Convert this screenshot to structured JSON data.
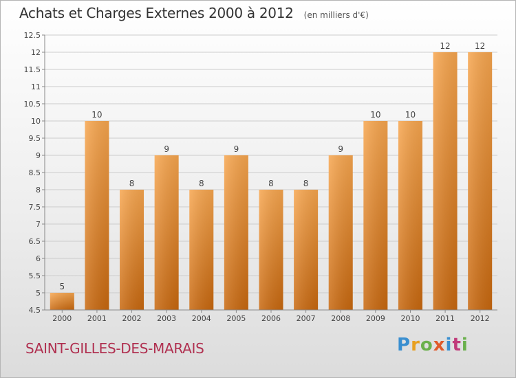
{
  "header": {
    "title": "Achats et Charges Externes 2000 à 2012",
    "subtitle": "(en milliers d'€)"
  },
  "footer": {
    "commune": "SAINT-GILLES-DES-MARAIS",
    "logo": "Proxiti"
  },
  "colors": {
    "bar_light": "#f7a64f",
    "bar_dark": "#c8680f",
    "commune_text": "#b03050",
    "grid": "#cccccc"
  },
  "chart_data": {
    "type": "bar",
    "title": "Achats et Charges Externes 2000 à 2012",
    "subtitle": "(en milliers d'€)",
    "xlabel": "",
    "ylabel": "",
    "categories": [
      "2000",
      "2001",
      "2002",
      "2003",
      "2004",
      "2005",
      "2006",
      "2007",
      "2008",
      "2009",
      "2010",
      "2011",
      "2012"
    ],
    "values": [
      5,
      10,
      8,
      9,
      8,
      9,
      8,
      8,
      9,
      10,
      10,
      12,
      12
    ],
    "data_labels": [
      "5",
      "10",
      "8",
      "9",
      "8",
      "9",
      "8",
      "8",
      "9",
      "10",
      "10",
      "12",
      "12"
    ],
    "ylim": [
      4.5,
      12.5
    ],
    "yticks": [
      4.5,
      5,
      5.5,
      6,
      6.5,
      7,
      7.5,
      8,
      8.5,
      9,
      9.5,
      10,
      10.5,
      11,
      11.5,
      12,
      12.5
    ],
    "ytick_labels": [
      "4.5",
      "5",
      "5.5",
      "6",
      "6.5",
      "7",
      "7.5",
      "8",
      "8.5",
      "9",
      "9.5",
      "10",
      "10.5",
      "11",
      "11.5",
      "12",
      "12.5"
    ],
    "grid": true,
    "legend": "none"
  }
}
